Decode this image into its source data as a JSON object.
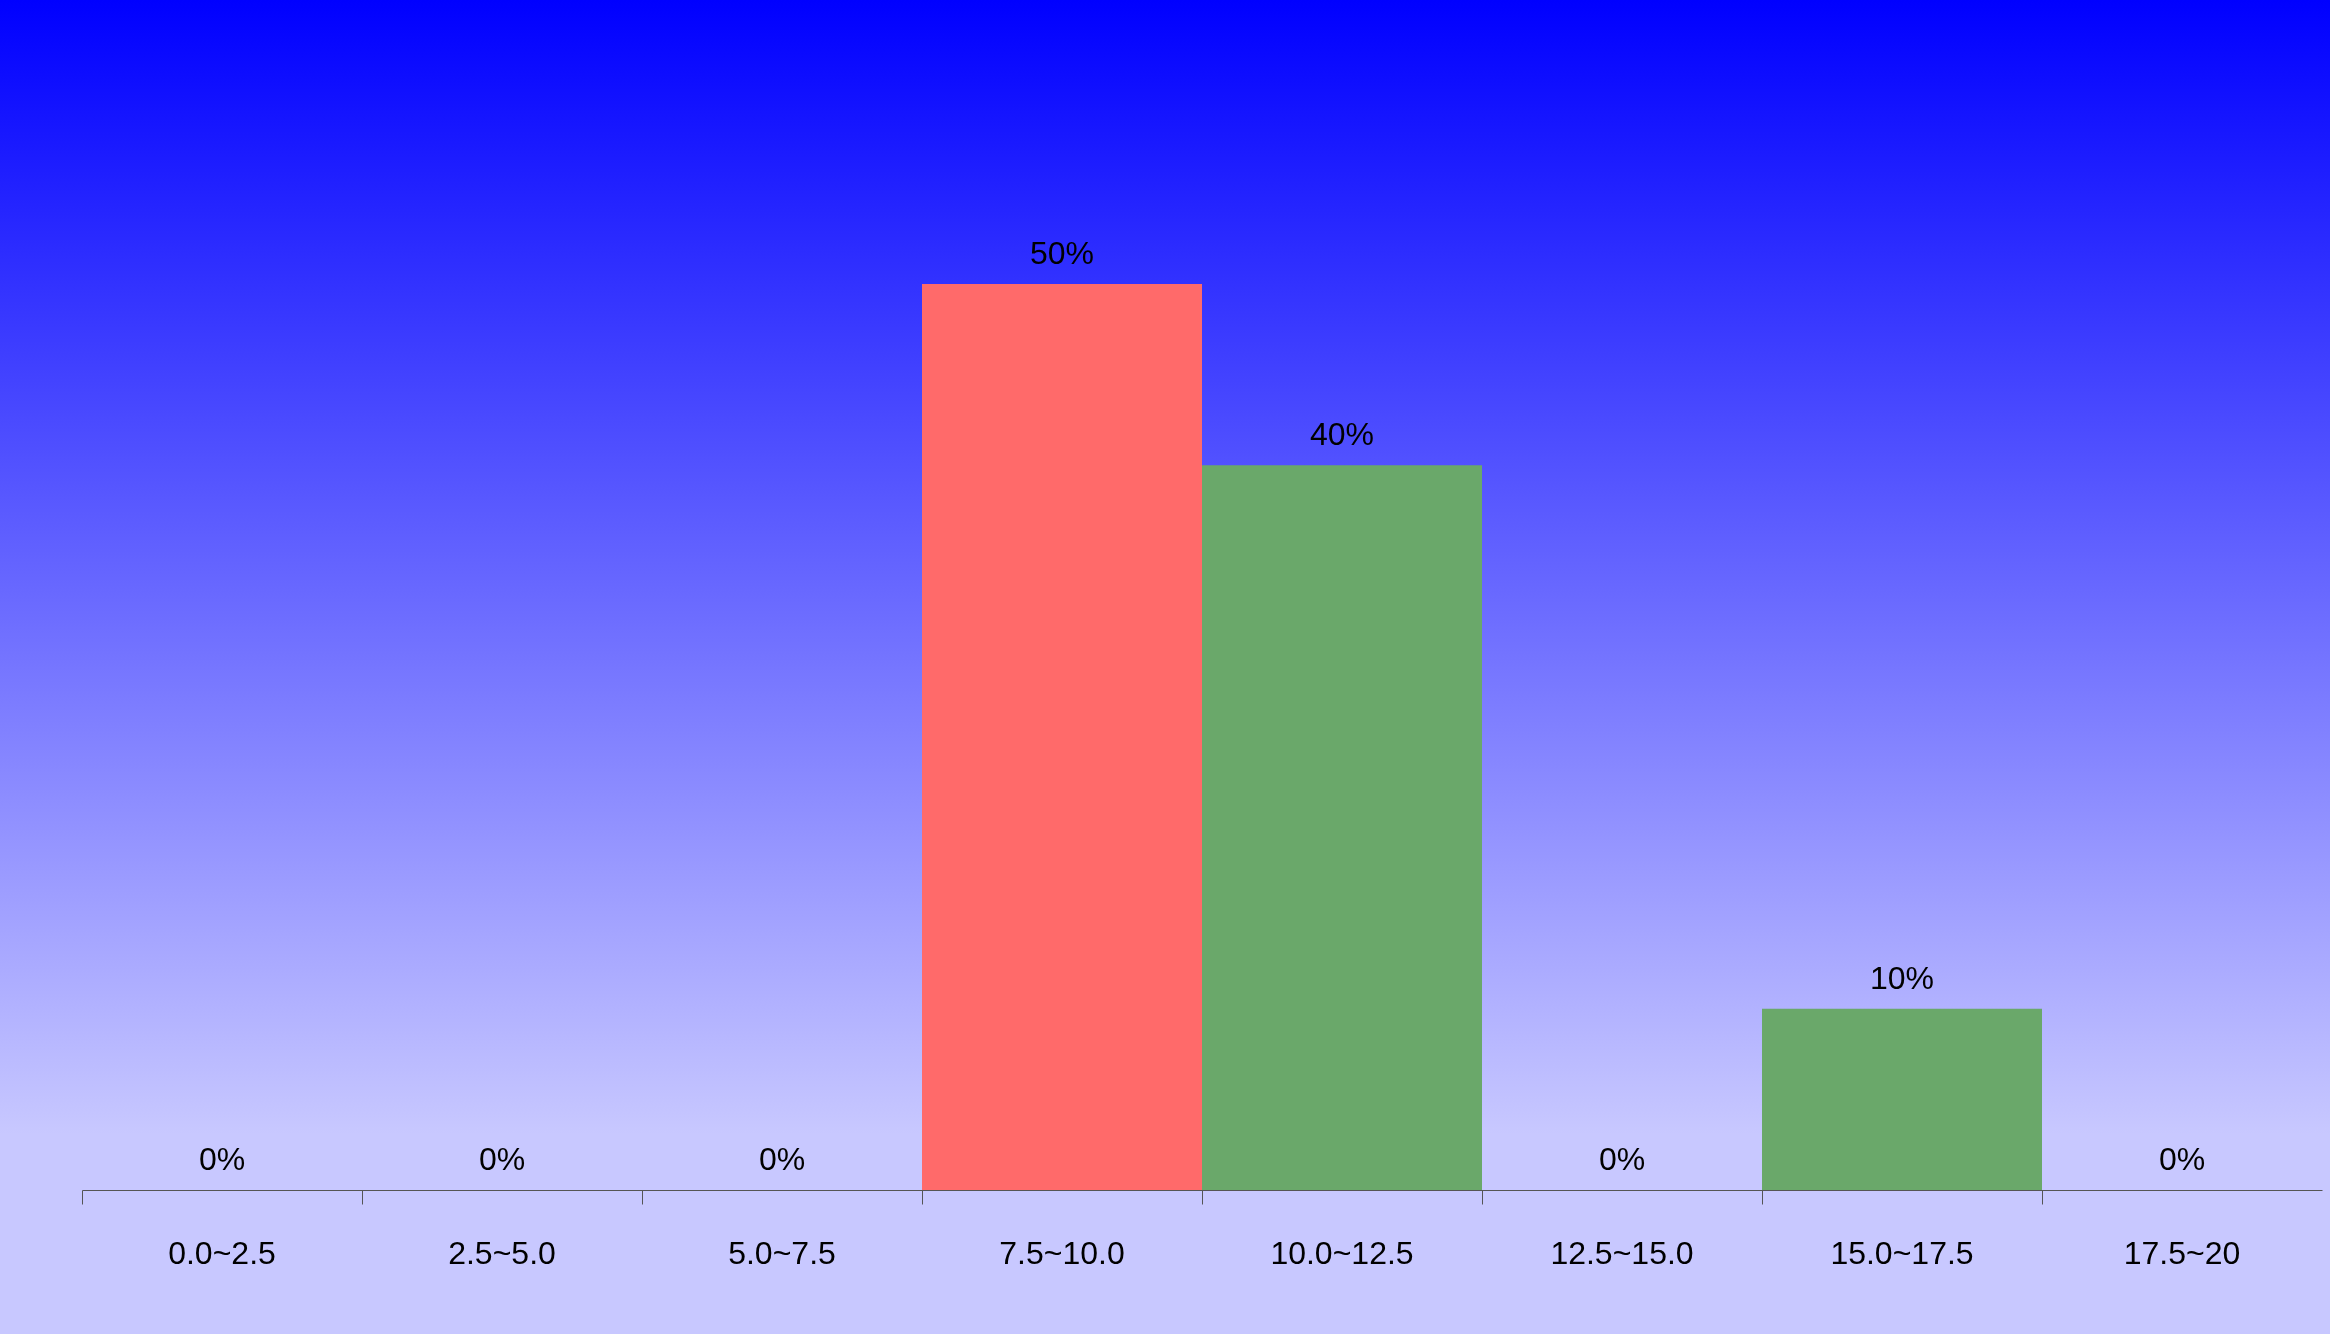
{
  "chart_data": {
    "type": "bar",
    "categories": [
      "0.0~2.5",
      "2.5~5.0",
      "5.0~7.5",
      "7.5~10.0",
      "10.0~12.5",
      "12.5~15.0",
      "15.0~17.5",
      "17.5~20"
    ],
    "values": [
      0,
      0,
      0,
      50,
      40,
      0,
      10,
      0
    ],
    "colors": [
      "#6aa86a",
      "#6aa86a",
      "#6aa86a",
      "#ff6a6a",
      "#6aa86a",
      "#6aa86a",
      "#6aa86a",
      "#6aa86a"
    ],
    "value_labels": [
      "0%",
      "0%",
      "0%",
      "50%",
      "40%",
      "0%",
      "10%",
      "0%"
    ],
    "tick_labels": "x",
    "grid": false,
    "legend": false
  }
}
